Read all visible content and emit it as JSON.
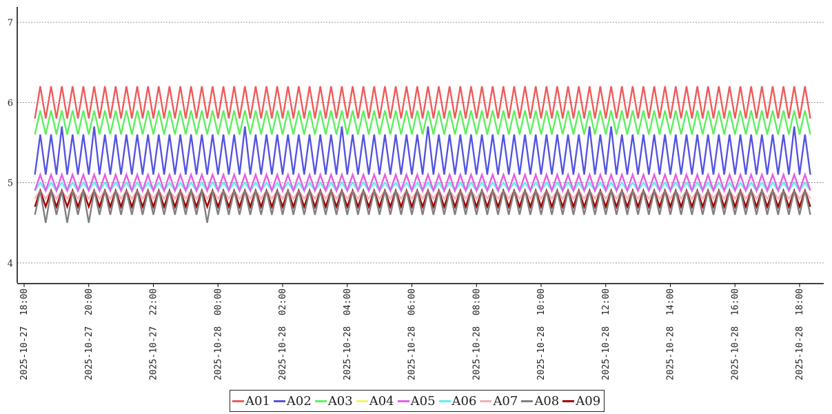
{
  "chart_data": {
    "type": "line",
    "title": "",
    "xlabel": "",
    "ylabel": "",
    "ylim": [
      3.8,
      7.2
    ],
    "xlim": [
      "2025-10-27 18:00",
      "2025-10-28 18:45"
    ],
    "y_ticks": [
      "4",
      "5",
      "6",
      "7"
    ],
    "x_ticks": [
      "2025-10-27 18:00",
      "2025-10-27 20:00",
      "2025-10-27 22:00",
      "2025-10-28 00:00",
      "2025-10-28 02:00",
      "2025-10-28 04:00",
      "2025-10-28 06:00",
      "2025-10-28 08:00",
      "2025-10-28 10:00",
      "2025-10-28 12:00",
      "2025-10-28 14:00",
      "2025-10-28 16:00",
      "2025-10-28 18:00"
    ],
    "grid": "horizontal dotted",
    "legend_position": "bottom-center",
    "x_start": "2025-10-27 18:20",
    "x_end": "2025-10-28 18:20",
    "sampling": "oscillating approx. every 10 minutes",
    "series": [
      {
        "name": "A01",
        "color": "#f05a5a",
        "low": 5.8,
        "high": 6.2
      },
      {
        "name": "A02",
        "color": "#5454e0",
        "low": 5.1,
        "high": 5.6,
        "occasional_high": 5.7
      },
      {
        "name": "A03",
        "color": "#5cf05c",
        "low": 5.6,
        "high": 5.9
      },
      {
        "name": "A04",
        "color": "#f5f56a",
        "low": 4.9,
        "high": 5.1
      },
      {
        "name": "A05",
        "color": "#e85ce8",
        "low": 4.9,
        "high": 5.1
      },
      {
        "name": "A06",
        "color": "#5cf0f0",
        "low": 4.9,
        "high": 5.0
      },
      {
        "name": "A07",
        "color": "#f0b0b0",
        "low": 4.8,
        "high": 4.9
      },
      {
        "name": "A08",
        "color": "#808080",
        "low": 4.6,
        "high": 4.9,
        "occasional_low": 4.5
      },
      {
        "name": "A09",
        "color": "#a00000",
        "low": 4.7,
        "high": 4.9
      }
    ]
  }
}
